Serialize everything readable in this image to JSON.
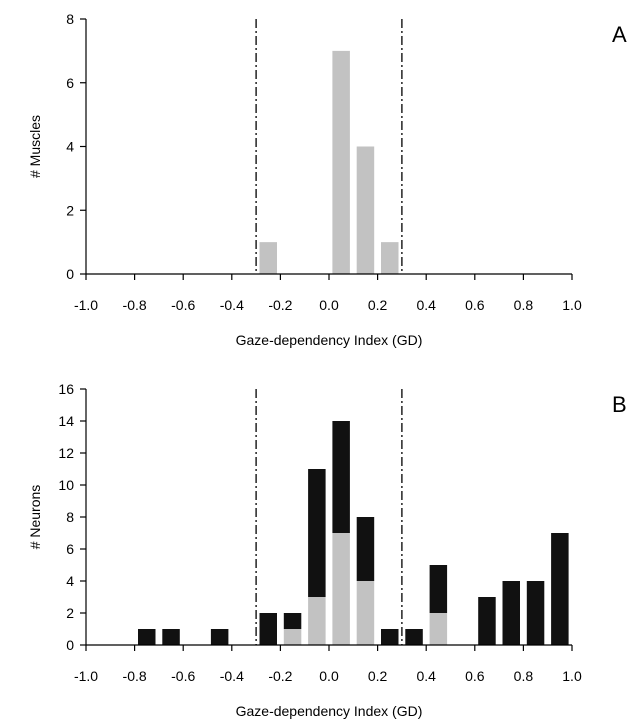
{
  "colors": {
    "gray_bar": "#c2c2c2",
    "black_bar": "#111111",
    "axis": "#000000",
    "threshold_line": "#000000"
  },
  "chart_data": [
    {
      "panel": "A",
      "type": "bar",
      "xlabel": "Gaze-dependency Index (GD)",
      "ylabel": "# Muscles",
      "xlim": [
        -1.0,
        1.0
      ],
      "ylim": [
        0,
        8
      ],
      "x_ticks": [
        "-1.0",
        "-0.8",
        "-0.6",
        "-0.4",
        "-0.2",
        "0.0",
        "0.2",
        "0.4",
        "0.6",
        "0.8",
        "1.0"
      ],
      "y_ticks": [
        "0",
        "2",
        "4",
        "6",
        "8"
      ],
      "bin_width": 0.1,
      "threshold_lines": [
        -0.3,
        0.3
      ],
      "series": [
        {
          "color": "#c2c2c2",
          "bins": [
            {
              "x": -0.25,
              "value": 1
            },
            {
              "x": 0.05,
              "value": 7
            },
            {
              "x": 0.15,
              "value": 4
            },
            {
              "x": 0.25,
              "value": 1
            }
          ]
        }
      ]
    },
    {
      "panel": "B",
      "type": "bar",
      "stacked": true,
      "xlabel": "Gaze-dependency Index (GD)",
      "ylabel": "# Neurons",
      "xlim": [
        -1.0,
        1.0
      ],
      "ylim": [
        0,
        16
      ],
      "x_ticks": [
        "-1.0",
        "-0.8",
        "-0.6",
        "-0.4",
        "-0.2",
        "0.0",
        "0.2",
        "0.4",
        "0.6",
        "0.8",
        "1.0"
      ],
      "y_ticks": [
        "0",
        "2",
        "4",
        "6",
        "8",
        "10",
        "12",
        "14",
        "16"
      ],
      "bin_width": 0.1,
      "threshold_lines": [
        -0.3,
        0.3
      ],
      "series": [
        {
          "color": "#c2c2c2",
          "bins": [
            {
              "x": -0.75,
              "value": 0
            },
            {
              "x": -0.65,
              "value": 0
            },
            {
              "x": -0.45,
              "value": 0
            },
            {
              "x": -0.25,
              "value": 0
            },
            {
              "x": -0.15,
              "value": 1
            },
            {
              "x": -0.05,
              "value": 3
            },
            {
              "x": 0.05,
              "value": 7
            },
            {
              "x": 0.15,
              "value": 4
            },
            {
              "x": 0.25,
              "value": 0
            },
            {
              "x": 0.35,
              "value": 0
            },
            {
              "x": 0.45,
              "value": 2
            },
            {
              "x": 0.65,
              "value": 0
            },
            {
              "x": 0.75,
              "value": 0
            },
            {
              "x": 0.85,
              "value": 0
            },
            {
              "x": 0.95,
              "value": 0
            }
          ]
        },
        {
          "color": "#111111",
          "bins": [
            {
              "x": -0.75,
              "value": 1
            },
            {
              "x": -0.65,
              "value": 1
            },
            {
              "x": -0.45,
              "value": 1
            },
            {
              "x": -0.25,
              "value": 2
            },
            {
              "x": -0.15,
              "value": 1
            },
            {
              "x": -0.05,
              "value": 8
            },
            {
              "x": 0.05,
              "value": 7
            },
            {
              "x": 0.15,
              "value": 4
            },
            {
              "x": 0.25,
              "value": 1
            },
            {
              "x": 0.35,
              "value": 1
            },
            {
              "x": 0.45,
              "value": 3
            },
            {
              "x": 0.65,
              "value": 3
            },
            {
              "x": 0.75,
              "value": 4
            },
            {
              "x": 0.85,
              "value": 4
            },
            {
              "x": 0.95,
              "value": 7
            }
          ]
        }
      ]
    }
  ]
}
